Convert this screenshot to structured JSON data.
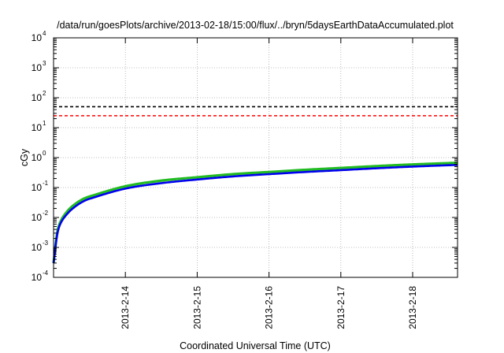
{
  "chart_data": {
    "type": "line",
    "title": "/data/run/goesPlots/archive/2013-02-18/15:00/flux/../bryn/5daysEarthDataAccumulated.plot",
    "xlabel": "Coordinated Universal Time (UTC)",
    "ylabel": "cGy",
    "x_scale": "time",
    "y_scale": "log",
    "xlim": [
      "2013-02-13T00:00",
      "2013-02-18T15:00"
    ],
    "ylim": [
      0.0001,
      10000
    ],
    "grid": true,
    "legend": "none",
    "x_ticks": [
      "2013-2-14",
      "2013-2-15",
      "2013-2-16",
      "2013-2-17",
      "2013-2-18"
    ],
    "y_ticks": [
      {
        "base": "10",
        "exp": "-4",
        "value": 0.0001
      },
      {
        "base": "10",
        "exp": "-3",
        "value": 0.001
      },
      {
        "base": "10",
        "exp": "-2",
        "value": 0.01
      },
      {
        "base": "10",
        "exp": "-1",
        "value": 0.1
      },
      {
        "base": "10",
        "exp": "0",
        "value": 1
      },
      {
        "base": "10",
        "exp": "1",
        "value": 10
      },
      {
        "base": "10",
        "exp": "2",
        "value": 100
      },
      {
        "base": "10",
        "exp": "3",
        "value": 1000
      },
      {
        "base": "10",
        "exp": "4",
        "value": 10000
      }
    ],
    "reference_lines": [
      {
        "y": 50,
        "color": "#000000",
        "style": "dashed"
      },
      {
        "y": 25,
        "color": "#ff0000",
        "style": "dashed"
      }
    ],
    "series": [
      {
        "color": "#22bb22",
        "x": [
          "2013-02-13T00:00",
          "2013-02-13T01:12",
          "2013-02-13T02:24",
          "2013-02-13T04:48",
          "2013-02-13T07:12",
          "2013-02-13T09:36",
          "2013-02-13T12:00",
          "2013-02-14T00:00",
          "2013-02-14T12:00",
          "2013-02-15T00:00",
          "2013-02-15T12:00",
          "2013-02-16T00:00",
          "2013-02-16T12:00",
          "2013-02-17T00:00",
          "2013-02-17T12:00",
          "2013-02-18T00:00",
          "2013-02-18T15:00"
        ],
        "values": [
          0.0003,
          0.003,
          0.0075,
          0.017,
          0.028,
          0.04,
          0.05,
          0.11,
          0.17,
          0.22,
          0.28,
          0.33,
          0.39,
          0.45,
          0.52,
          0.59,
          0.67
        ]
      },
      {
        "color": "#0000ee",
        "x": [
          "2013-02-13T00:00",
          "2013-02-13T01:12",
          "2013-02-13T02:24",
          "2013-02-13T04:48",
          "2013-02-13T07:12",
          "2013-02-13T09:36",
          "2013-02-13T12:00",
          "2013-02-14T00:00",
          "2013-02-14T12:00",
          "2013-02-15T00:00",
          "2013-02-15T12:00",
          "2013-02-16T00:00",
          "2013-02-16T12:00",
          "2013-02-17T00:00",
          "2013-02-17T12:00",
          "2013-02-18T00:00",
          "2013-02-18T15:00"
        ],
        "values": [
          0.0003,
          0.0026,
          0.0065,
          0.014,
          0.023,
          0.033,
          0.042,
          0.092,
          0.14,
          0.185,
          0.235,
          0.28,
          0.33,
          0.38,
          0.44,
          0.5,
          0.57
        ]
      }
    ]
  }
}
